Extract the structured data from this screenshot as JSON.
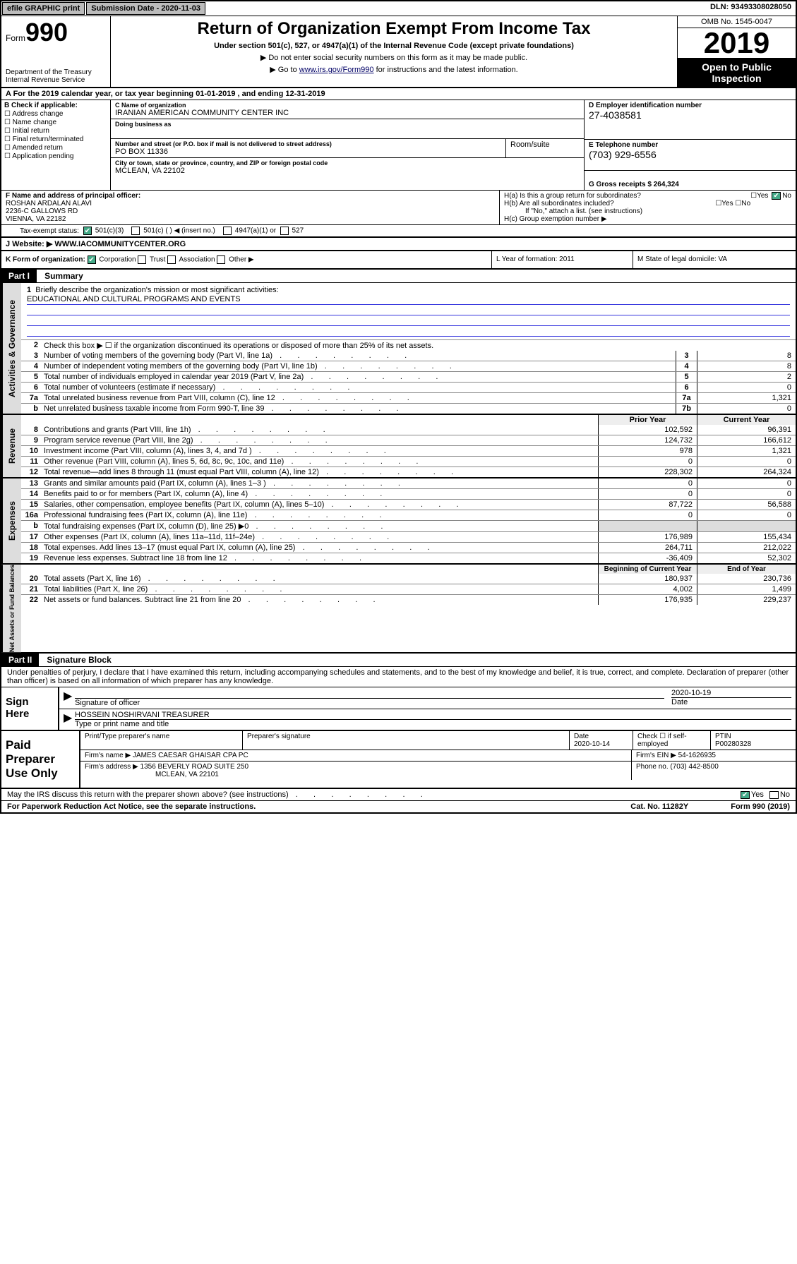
{
  "topbar": {
    "efile": "efile GRAPHIC print",
    "subdate_lbl": "Submission Date - 2020-11-03",
    "dln": "DLN: 93493308028050"
  },
  "header": {
    "form_label": "Form",
    "form_no": "990",
    "dept": "Department of the Treasury\nInternal Revenue Service",
    "title": "Return of Organization Exempt From Income Tax",
    "subtitle": "Under section 501(c), 527, or 4947(a)(1) of the Internal Revenue Code (except private foundations)",
    "note1": "▶ Do not enter social security numbers on this form as it may be made public.",
    "note2_pre": "▶ Go to ",
    "note2_link": "www.irs.gov/Form990",
    "note2_post": " for instructions and the latest information.",
    "omb": "OMB No. 1545-0047",
    "year": "2019",
    "open": "Open to Public Inspection"
  },
  "period": "A For the 2019 calendar year, or tax year beginning 01-01-2019    , and ending 12-31-2019",
  "block_b": {
    "label": "B Check if applicable:",
    "opts": [
      "Address change",
      "Name change",
      "Initial return",
      "Final return/terminated",
      "Amended return",
      "Application pending"
    ]
  },
  "block_c": {
    "name_lbl": "C Name of organization",
    "name": "IRANIAN AMERICAN COMMUNITY CENTER INC",
    "dba_lbl": "Doing business as",
    "dba": "",
    "num_lbl": "Number and street (or P.O. box if mail is not delivered to street address)",
    "num": "PO BOX 11336",
    "room_lbl": "Room/suite",
    "city_lbl": "City or town, state or province, country, and ZIP or foreign postal code",
    "city": "MCLEAN, VA  22102"
  },
  "block_d": {
    "ein_lbl": "D Employer identification number",
    "ein": "27-4038581",
    "tel_lbl": "E Telephone number",
    "tel": "(703) 929-6556",
    "gross_lbl": "G Gross receipts $ 264,324"
  },
  "block_f": {
    "lbl": "F  Name and address of principal officer:",
    "name": "ROSHAN ARDALAN ALAVI",
    "addr1": "2236-C GALLOWS RD",
    "addr2": "VIENNA, VA  22182"
  },
  "block_h": {
    "a": "H(a)  Is this a group return for subordinates?",
    "b": "H(b)  Are all subordinates included?",
    "b_note": "If \"No,\" attach a list. (see instructions)",
    "c": "H(c)  Group exemption number ▶"
  },
  "status": {
    "lbl": "Tax-exempt status:",
    "opts": [
      "501(c)(3)",
      "501(c) (  ) ◀ (insert no.)",
      "4947(a)(1) or",
      "527"
    ]
  },
  "website": {
    "lbl": "J  Website: ▶",
    "val": "WWW.IACOMMUNITYCENTER.ORG"
  },
  "korg": {
    "k_lbl": "K Form of organization:",
    "k_opts": [
      "Corporation",
      "Trust",
      "Association",
      "Other ▶"
    ],
    "l": "L Year of formation: 2011",
    "m": "M State of legal domicile: VA"
  },
  "part1": {
    "hdr": "Part I",
    "title": "Summary",
    "line1_lbl": "1",
    "line1_desc": "Briefly describe the organization's mission or most significant activities:",
    "mission": "EDUCATIONAL AND CULTURAL PROGRAMS AND EVENTS",
    "line2": "Check this box ▶ ☐  if the organization discontinued its operations or disposed of more than 25% of its net assets.",
    "tab_gov": "Activities & Governance",
    "tab_rev": "Revenue",
    "tab_exp": "Expenses",
    "tab_net": "Net Assets or Fund Balances"
  },
  "gov_lines": [
    {
      "n": "3",
      "d": "Number of voting members of the governing body (Part VI, line 1a)",
      "box": "3",
      "v": "8"
    },
    {
      "n": "4",
      "d": "Number of independent voting members of the governing body (Part VI, line 1b)",
      "box": "4",
      "v": "8"
    },
    {
      "n": "5",
      "d": "Total number of individuals employed in calendar year 2019 (Part V, line 2a)",
      "box": "5",
      "v": "2"
    },
    {
      "n": "6",
      "d": "Total number of volunteers (estimate if necessary)",
      "box": "6",
      "v": "0"
    },
    {
      "n": "7a",
      "d": "Total unrelated business revenue from Part VIII, column (C), line 12",
      "box": "7a",
      "v": "1,321"
    },
    {
      "n": "  b",
      "d": "Net unrelated business taxable income from Form 990-T, line 39",
      "box": "7b",
      "v": "0"
    }
  ],
  "pycy_hdr": {
    "py": "Prior Year",
    "cy": "Current Year"
  },
  "rev_lines": [
    {
      "n": "8",
      "d": "Contributions and grants (Part VIII, line 1h)",
      "py": "102,592",
      "cy": "96,391"
    },
    {
      "n": "9",
      "d": "Program service revenue (Part VIII, line 2g)",
      "py": "124,732",
      "cy": "166,612"
    },
    {
      "n": "10",
      "d": "Investment income (Part VIII, column (A), lines 3, 4, and 7d )",
      "py": "978",
      "cy": "1,321"
    },
    {
      "n": "11",
      "d": "Other revenue (Part VIII, column (A), lines 5, 6d, 8c, 9c, 10c, and 11e)",
      "py": "0",
      "cy": "0"
    },
    {
      "n": "12",
      "d": "Total revenue—add lines 8 through 11 (must equal Part VIII, column (A), line 12)",
      "py": "228,302",
      "cy": "264,324"
    }
  ],
  "exp_lines": [
    {
      "n": "13",
      "d": "Grants and similar amounts paid (Part IX, column (A), lines 1–3 )",
      "py": "0",
      "cy": "0"
    },
    {
      "n": "14",
      "d": "Benefits paid to or for members (Part IX, column (A), line 4)",
      "py": "0",
      "cy": "0"
    },
    {
      "n": "15",
      "d": "Salaries, other compensation, employee benefits (Part IX, column (A), lines 5–10)",
      "py": "87,722",
      "cy": "56,588"
    },
    {
      "n": "16a",
      "d": "Professional fundraising fees (Part IX, column (A), line 11e)",
      "py": "0",
      "cy": "0"
    },
    {
      "n": "  b",
      "d": "Total fundraising expenses (Part IX, column (D), line 25) ▶0",
      "py": "",
      "cy": "",
      "shaded": true
    },
    {
      "n": "17",
      "d": "Other expenses (Part IX, column (A), lines 11a–11d, 11f–24e)",
      "py": "176,989",
      "cy": "155,434"
    },
    {
      "n": "18",
      "d": "Total expenses. Add lines 13–17 (must equal Part IX, column (A), line 25)",
      "py": "264,711",
      "cy": "212,022"
    },
    {
      "n": "19",
      "d": "Revenue less expenses. Subtract line 18 from line 12",
      "py": "-36,409",
      "cy": "52,302"
    }
  ],
  "net_hdr": {
    "py": "Beginning of Current Year",
    "cy": "End of Year"
  },
  "net_lines": [
    {
      "n": "20",
      "d": "Total assets (Part X, line 16)",
      "py": "180,937",
      "cy": "230,736"
    },
    {
      "n": "21",
      "d": "Total liabilities (Part X, line 26)",
      "py": "4,002",
      "cy": "1,499"
    },
    {
      "n": "22",
      "d": "Net assets or fund balances. Subtract line 21 from line 20",
      "py": "176,935",
      "cy": "229,237"
    }
  ],
  "part2": {
    "hdr": "Part II",
    "title": "Signature Block",
    "perjury": "Under penalties of perjury, I declare that I have examined this return, including accompanying schedules and statements, and to the best of my knowledge and belief, it is true, correct, and complete. Declaration of preparer (other than officer) is based on all information of which preparer has any knowledge."
  },
  "sign": {
    "label": "Sign Here",
    "sig_lbl": "Signature of officer",
    "date": "2020-10-19",
    "date_lbl": "Date",
    "name": "HOSSEIN NOSHIRVANI  TREASURER",
    "name_lbl": "Type or print name and title"
  },
  "prep": {
    "label": "Paid Preparer Use Only",
    "r1": {
      "c1": "Print/Type preparer's name",
      "c2": "Preparer's signature",
      "c3_lbl": "Date",
      "c3": "2020-10-14",
      "c4": "Check ☐ if self-employed",
      "c5_lbl": "PTIN",
      "c5": "P00280328"
    },
    "r2": {
      "lbl": "Firm's name    ▶",
      "val": "JAMES CAESAR GHAISAR CPA PC",
      "ein_lbl": "Firm's EIN ▶",
      "ein": "54-1626935"
    },
    "r3": {
      "lbl": "Firm's address ▶",
      "val": "1356 BEVERLY ROAD SUITE 250",
      "val2": "MCLEAN, VA  22101",
      "ph_lbl": "Phone no.",
      "ph": "(703) 442-8500"
    }
  },
  "footer": {
    "discuss": "May the IRS discuss this return with the preparer shown above? (see instructions)",
    "pra": "For Paperwork Reduction Act Notice, see the separate instructions.",
    "cat": "Cat. No. 11282Y",
    "form": "Form 990 (2019)"
  }
}
